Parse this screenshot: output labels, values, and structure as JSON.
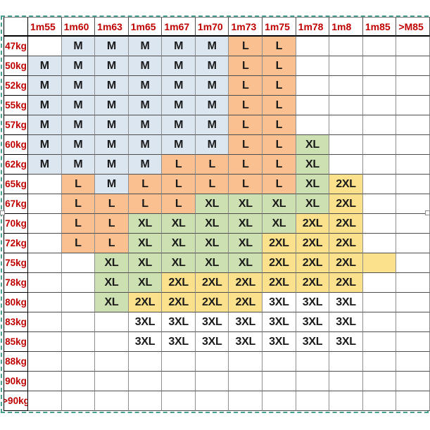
{
  "chart_data": {
    "type": "table",
    "columns": [
      "1m55",
      "1m60",
      "1m63",
      "1m65",
      "1m67",
      "1m70",
      "1m73",
      "1m75",
      "1m78",
      "1m8",
      "1m85",
      ">M85"
    ],
    "row_labels": [
      "47kg",
      "50kg",
      "52kg",
      "55kg",
      "57kg",
      "60kg",
      "62kg",
      "65kg",
      "67kg",
      "70kg",
      "72kg",
      "75kg",
      "78kg",
      "80kg",
      "83kg",
      "85kg",
      "88kg",
      "90kg",
      ">90kg"
    ],
    "matrix": [
      [
        "",
        "M",
        "M",
        "M",
        "M",
        "M",
        "L",
        "L",
        "",
        "",
        "",
        ""
      ],
      [
        "M",
        "M",
        "M",
        "M",
        "M",
        "M",
        "L",
        "L",
        "",
        "",
        "",
        ""
      ],
      [
        "M",
        "M",
        "M",
        "M",
        "M",
        "M",
        "L",
        "L",
        "",
        "",
        "",
        ""
      ],
      [
        "M",
        "M",
        "M",
        "M",
        "M",
        "M",
        "L",
        "L",
        "",
        "",
        "",
        ""
      ],
      [
        "M",
        "M",
        "M",
        "M",
        "M",
        "M",
        "L",
        "L",
        "",
        "",
        "",
        ""
      ],
      [
        "M",
        "M",
        "M",
        "M",
        "M",
        "M",
        "L",
        "L",
        "XL",
        "",
        "",
        ""
      ],
      [
        "M",
        "M",
        "M",
        "M",
        "L",
        "L",
        "L",
        "L",
        "XL",
        "",
        "",
        ""
      ],
      [
        "",
        "L",
        "M",
        "L",
        "L",
        "L",
        "L",
        "L",
        "XL",
        "2XL",
        "",
        ""
      ],
      [
        "",
        "L",
        "L",
        "L",
        "L",
        "XL",
        "XL",
        "XL",
        "XL",
        "2XL",
        "",
        ""
      ],
      [
        "",
        "L",
        "L",
        "XL",
        "XL",
        "XL",
        "XL",
        "XL",
        "2XL",
        "2XL",
        "",
        ""
      ],
      [
        "",
        "L",
        "L",
        "XL",
        "XL",
        "XL",
        "XL",
        "2XL",
        "2XL",
        "2XL",
        "",
        ""
      ],
      [
        "",
        "",
        "XL",
        "XL",
        "XL",
        "XL",
        "XL",
        "2XL",
        "2XL",
        "2XL",
        "",
        ""
      ],
      [
        "",
        "",
        "XL",
        "XL",
        "2XL",
        "2XL",
        "2XL",
        "2XL",
        "2XL",
        "2XL",
        "",
        ""
      ],
      [
        "",
        "",
        "XL",
        "2XL",
        "2XL",
        "2XL",
        "2XL",
        "3XL",
        "3XL",
        "3XL",
        "",
        ""
      ],
      [
        "",
        "",
        "",
        "3XL",
        "3XL",
        "3XL",
        "3XL",
        "3XL",
        "3XL",
        "3XL",
        "",
        ""
      ],
      [
        "",
        "",
        "",
        "3XL",
        "3XL",
        "3XL",
        "3XL",
        "3XL",
        "3XL",
        "3XL",
        "",
        ""
      ],
      [
        "",
        "",
        "",
        "",
        "",
        "",
        "",
        "",
        "",
        "",
        "",
        ""
      ],
      [
        "",
        "",
        "",
        "",
        "",
        "",
        "",
        "",
        "",
        "",
        "",
        ""
      ],
      [
        "",
        "",
        "",
        "",
        "",
        "",
        "",
        "",
        "",
        "",
        "",
        ""
      ]
    ],
    "special_fills": [
      {
        "row": 11,
        "col": 10,
        "size_key": "2XL"
      }
    ],
    "size_fill_colors": {
      "M": "#dce6f1",
      "L": "#fac090",
      "XL": "#cde0b2",
      "2XL": "#fbe18c",
      "3XL": "#ffffff"
    },
    "corner_label": ""
  },
  "colors": {
    "header_text": "#c00000",
    "size_text": "#1a1a1a",
    "header_line": "#000000",
    "grid_horizontal": "#4d4d4d",
    "grid_vertical": "#8f8f8f",
    "marquee": "#46a08f"
  },
  "selection": {
    "handles": [
      "left-middle",
      "right-middle"
    ]
  }
}
